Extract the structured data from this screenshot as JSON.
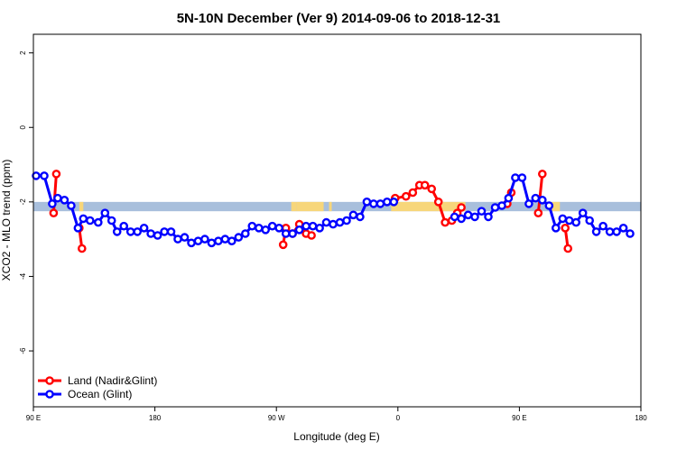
{
  "chart_data": {
    "type": "line",
    "title": "5N-10N December (Ver 9)   2014-09-06 to 2018-12-31",
    "xlabel": "Longitude (deg E)",
    "ylabel": "XCO2 - MLO trend (ppm)",
    "x_ticks": [
      {
        "value": 90,
        "label": "90 E"
      },
      {
        "value": 180,
        "label": "180"
      },
      {
        "value": 270,
        "label": "90 W"
      },
      {
        "value": 360,
        "label": "0"
      },
      {
        "value": 450,
        "label": "90 E"
      },
      {
        "value": 540,
        "label": "180"
      }
    ],
    "y_ticks": [
      {
        "value": 2,
        "label": "2"
      },
      {
        "value": 0,
        "label": "0"
      },
      {
        "value": -2,
        "label": "-2"
      },
      {
        "value": -4,
        "label": "-4"
      },
      {
        "value": -6,
        "label": "-6"
      }
    ],
    "xlim": [
      90,
      540
    ],
    "ylim": [
      -7.5,
      2.5
    ],
    "grid": false,
    "legend_position": "bottom-left",
    "land_band": {
      "color": "#a8bfdc",
      "land_color": "#f7d67a",
      "y_low": -2.25,
      "y_high": -2.0
    },
    "land_segments": [
      [
        124,
        127
      ],
      [
        281,
        285
      ],
      [
        285,
        305
      ],
      [
        309,
        311
      ],
      [
        355,
        410
      ],
      [
        474,
        480
      ]
    ],
    "series": [
      {
        "name": "Land (Nadir&Glint)",
        "color": "#ff0000",
        "segments": [
          [
            [
              105,
              -2.3
            ],
            [
              107,
              -1.25
            ]
          ],
          [
            [
              124,
              -2.7
            ],
            [
              126,
              -3.25
            ]
          ],
          [
            [
              275,
              -3.15
            ],
            [
              277,
              -2.7
            ],
            [
              282,
              -2.85
            ],
            [
              287,
              -2.6
            ],
            [
              292,
              -2.85
            ],
            [
              296,
              -2.9
            ]
          ],
          [
            [
              358,
              -1.9
            ],
            [
              366,
              -1.85
            ],
            [
              371,
              -1.75
            ],
            [
              376,
              -1.55
            ],
            [
              380,
              -1.55
            ],
            [
              385,
              -1.65
            ],
            [
              390,
              -2.0
            ],
            [
              395,
              -2.55
            ],
            [
              400,
              -2.5
            ],
            [
              404,
              -2.3
            ],
            [
              407,
              -2.15
            ]
          ],
          [
            [
              441,
              -2.05
            ],
            [
              444,
              -1.75
            ]
          ],
          [
            [
              464,
              -2.3
            ],
            [
              467,
              -1.25
            ]
          ],
          [
            [
              484,
              -2.7
            ],
            [
              486,
              -3.25
            ]
          ]
        ]
      },
      {
        "name": "Ocean (Glint)",
        "color": "#0000ff",
        "segments": [
          [
            [
              92,
              -1.3
            ],
            [
              98,
              -1.3
            ],
            [
              104,
              -2.05
            ],
            [
              108,
              -1.9
            ],
            [
              113,
              -1.95
            ],
            [
              118,
              -2.1
            ],
            [
              123,
              -2.7
            ],
            [
              127,
              -2.45
            ],
            [
              132,
              -2.5
            ],
            [
              138,
              -2.55
            ],
            [
              143,
              -2.3
            ],
            [
              148,
              -2.5
            ],
            [
              152,
              -2.8
            ],
            [
              157,
              -2.65
            ],
            [
              162,
              -2.8
            ],
            [
              167,
              -2.8
            ],
            [
              172,
              -2.7
            ],
            [
              177,
              -2.85
            ],
            [
              182,
              -2.9
            ],
            [
              187,
              -2.8
            ],
            [
              192,
              -2.8
            ],
            [
              197,
              -3.0
            ],
            [
              202,
              -2.95
            ],
            [
              207,
              -3.1
            ],
            [
              212,
              -3.05
            ],
            [
              217,
              -3.0
            ],
            [
              222,
              -3.1
            ],
            [
              227,
              -3.05
            ],
            [
              232,
              -3.0
            ],
            [
              237,
              -3.05
            ],
            [
              242,
              -2.95
            ],
            [
              247,
              -2.85
            ],
            [
              252,
              -2.65
            ],
            [
              257,
              -2.7
            ],
            [
              262,
              -2.75
            ],
            [
              267,
              -2.65
            ],
            [
              272,
              -2.7
            ],
            [
              277,
              -2.85
            ],
            [
              282,
              -2.85
            ]
          ],
          [
            [
              287,
              -2.75
            ],
            [
              292,
              -2.65
            ],
            [
              297,
              -2.65
            ],
            [
              302,
              -2.7
            ],
            [
              307,
              -2.55
            ],
            [
              312,
              -2.6
            ],
            [
              317,
              -2.55
            ],
            [
              322,
              -2.5
            ],
            [
              327,
              -2.35
            ],
            [
              332,
              -2.4
            ],
            [
              337,
              -2.0
            ],
            [
              342,
              -2.05
            ],
            [
              347,
              -2.05
            ],
            [
              352,
              -2.0
            ],
            [
              357,
              -2.0
            ]
          ],
          [
            [
              402,
              -2.4
            ],
            [
              407,
              -2.45
            ],
            [
              412,
              -2.35
            ],
            [
              417,
              -2.4
            ],
            [
              422,
              -2.25
            ],
            [
              427,
              -2.4
            ],
            [
              432,
              -2.15
            ],
            [
              437,
              -2.1
            ],
            [
              442,
              -1.9
            ],
            [
              447,
              -1.35
            ],
            [
              452,
              -1.35
            ],
            [
              457,
              -2.05
            ],
            [
              462,
              -1.9
            ],
            [
              467,
              -1.95
            ],
            [
              472,
              -2.1
            ],
            [
              477,
              -2.7
            ],
            [
              482,
              -2.45
            ],
            [
              487,
              -2.5
            ],
            [
              492,
              -2.55
            ],
            [
              497,
              -2.3
            ],
            [
              502,
              -2.5
            ],
            [
              507,
              -2.8
            ],
            [
              512,
              -2.65
            ],
            [
              517,
              -2.8
            ],
            [
              522,
              -2.8
            ],
            [
              527,
              -2.7
            ],
            [
              532,
              -2.85
            ]
          ]
        ]
      }
    ]
  }
}
